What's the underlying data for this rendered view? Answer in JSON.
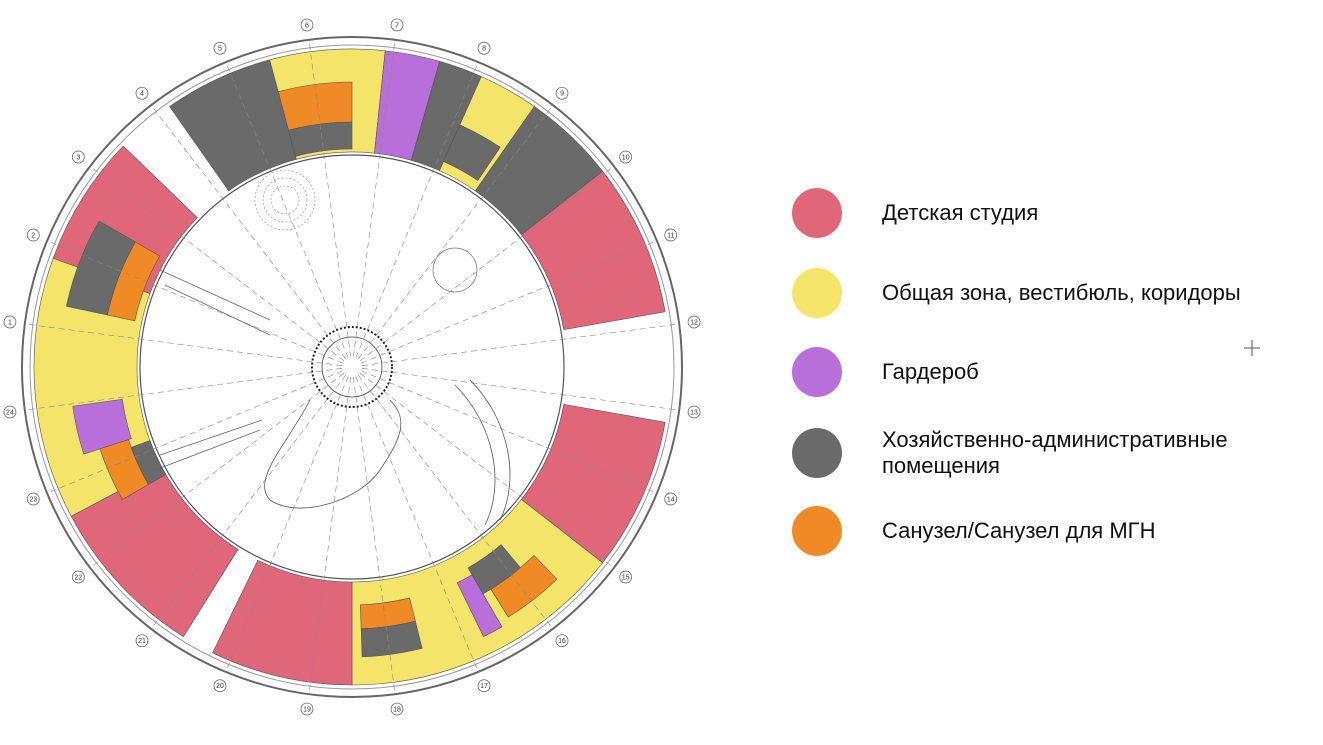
{
  "plan": {
    "axis_labels": [
      "1",
      "2",
      "3",
      "4",
      "5",
      "6",
      "7",
      "8",
      "9",
      "10",
      "11",
      "12",
      "13",
      "14",
      "15",
      "16",
      "17",
      "18",
      "19",
      "20",
      "21",
      "22",
      "23",
      "24"
    ]
  },
  "legend": {
    "items": [
      {
        "lines": [
          "Детская студия"
        ],
        "color": "#e0677a"
      },
      {
        "lines": [
          "Общая зона, вестибюль, коридоры"
        ],
        "color": "#f5e46a"
      },
      {
        "lines": [
          "Гардероб"
        ],
        "color": "#b96fd9"
      },
      {
        "lines": [
          "Хозяйственно-административные",
          "помещения"
        ],
        "color": "#6a6a6a"
      },
      {
        "lines": [
          "Санузел/Санузел для МГН"
        ],
        "color": "#f08a24"
      }
    ]
  }
}
